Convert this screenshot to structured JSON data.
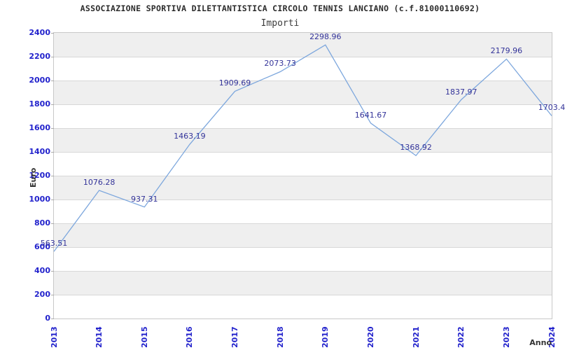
{
  "chart_data": {
    "type": "line",
    "title": "ASSOCIAZIONE SPORTIVA DILETTANTISTICA CIRCOLO TENNIS LANCIANO (c.f.81000110692)",
    "subtitle": "Importi",
    "xlabel": "Anno",
    "ylabel": "Euro",
    "categories": [
      "2013",
      "2014",
      "2015",
      "2016",
      "2017",
      "2018",
      "2019",
      "2020",
      "2021",
      "2022",
      "2023",
      "2024"
    ],
    "values": [
      563.51,
      1076.28,
      937.31,
      1463.19,
      1909.69,
      2073.73,
      2298.96,
      1641.67,
      1368.92,
      1837.97,
      2179.96,
      1703.4
    ],
    "point_labels": [
      "563.51",
      "1076.28",
      "937.31",
      "1463.19",
      "1909.69",
      "2073.73",
      "2298.96",
      "1641.67",
      "1368.92",
      "1837.97",
      "2179.96",
      "1703.4"
    ],
    "y_tick_labels": [
      "2400",
      "2200",
      "2000",
      "1800",
      "1600",
      "1400",
      "1200",
      "1000",
      "800",
      "600",
      "400",
      "200",
      "0"
    ],
    "ylim": [
      0,
      2400
    ],
    "ytick_step": 200,
    "grid": "horizontal-only",
    "legend": "none",
    "band_pattern": "alternating gray/white per 200 units, gray topmost",
    "colors": {
      "line": "#7da7dd",
      "axis_tick_label": "#2222cc",
      "point_label": "#333399",
      "band_gray": "#efefef",
      "band_white": "#ffffff",
      "gridline": "#d8d8d8",
      "plot_border": "#c8c8c8",
      "title": "#2b2b2b",
      "subtitle": "#3c3c3c",
      "axis_title": "#333333"
    }
  }
}
